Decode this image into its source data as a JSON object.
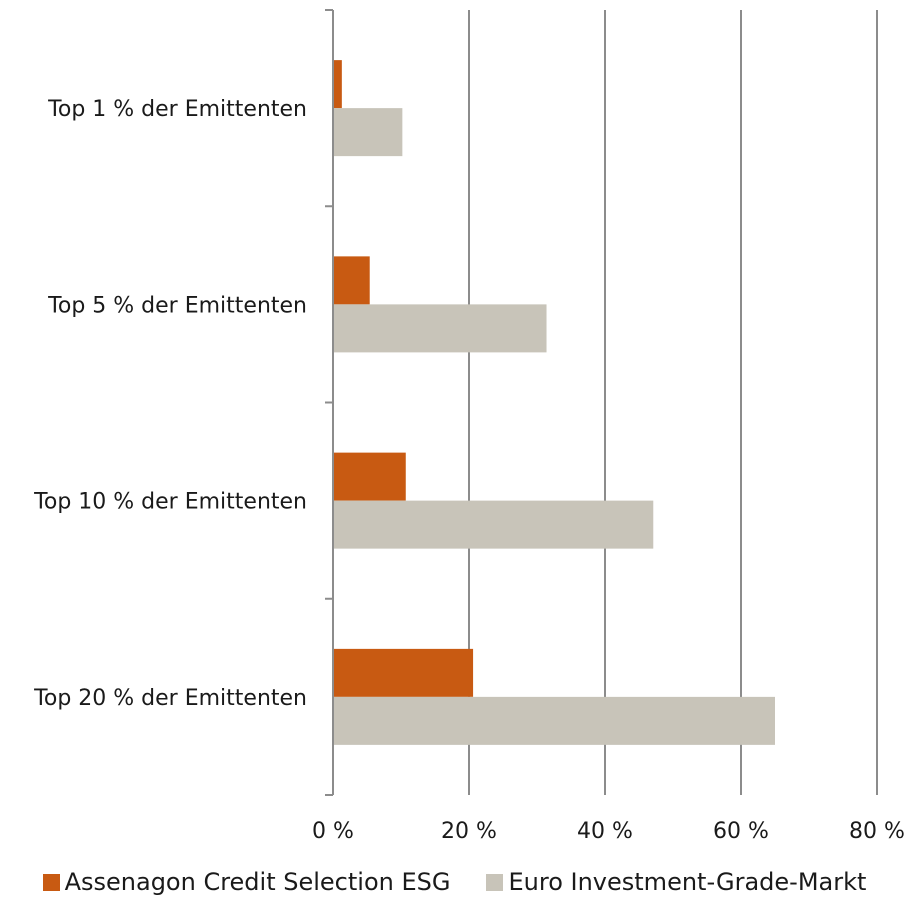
{
  "chart_data": {
    "type": "bar",
    "orientation": "horizontal",
    "categories": [
      "Top 1 % der Emittenten",
      "Top 5 % der Emittenten",
      "Top 10 % der Emittenten",
      "Top 20 % der Emittenten"
    ],
    "series": [
      {
        "name": "Assenagon Credit Selection ESG",
        "color": "#c85a12",
        "values": [
          1.3,
          5.4,
          10.7,
          20.6
        ]
      },
      {
        "name": "Euro Investment-Grade-Markt",
        "color": "#c8c4b9",
        "values": [
          10.2,
          31.4,
          47.1,
          65.0
        ]
      }
    ],
    "x_ticks": [
      "0 %",
      "20 %",
      "40 %",
      "60 %",
      "80 %"
    ],
    "xlim": [
      0,
      80
    ],
    "grid": true,
    "legend_position": "bottom",
    "title": "",
    "xlabel": "",
    "ylabel": ""
  }
}
